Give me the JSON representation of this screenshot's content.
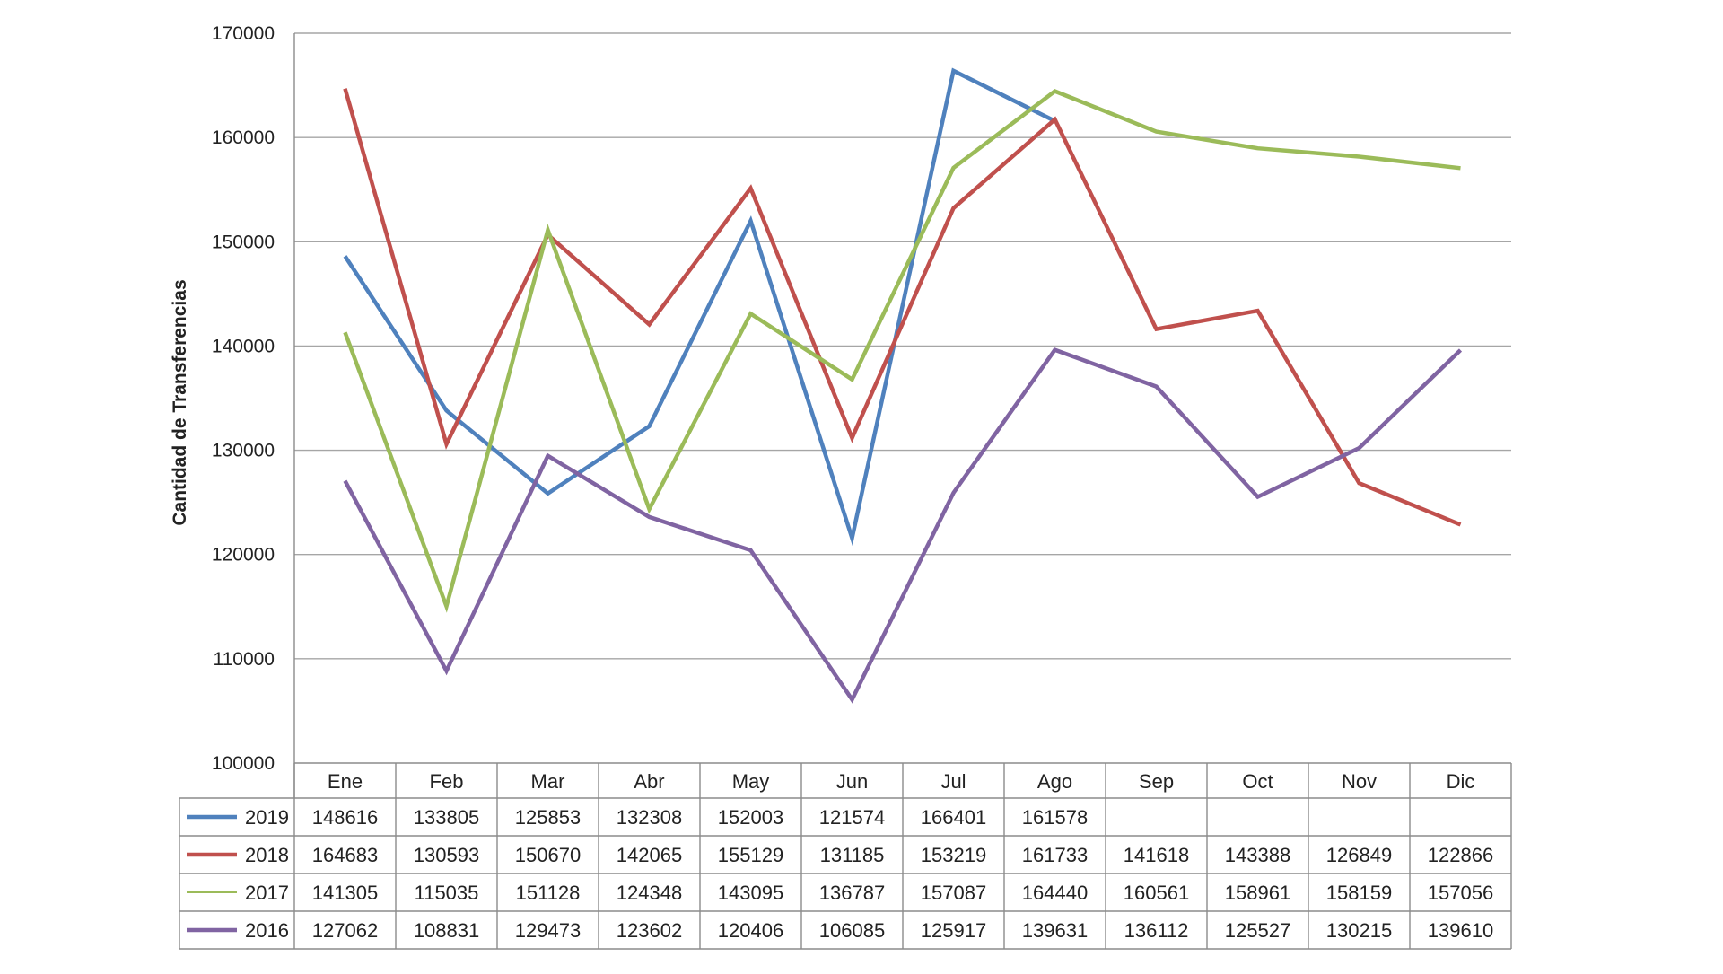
{
  "chart_data": {
    "type": "line",
    "title": "",
    "xlabel": "",
    "ylabel": "Cantidad de Transferencias",
    "ylim": [
      100000,
      170000
    ],
    "yticks": [
      100000,
      110000,
      120000,
      130000,
      140000,
      150000,
      160000,
      170000
    ],
    "grid": true,
    "legend": "data-table-left",
    "categories": [
      "Ene",
      "Feb",
      "Mar",
      "Abr",
      "May",
      "Jun",
      "Jul",
      "Ago",
      "Sep",
      "Oct",
      "Nov",
      "Dic"
    ],
    "series": [
      {
        "name": "2019",
        "color": "#4f81bd",
        "values": [
          148616,
          133805,
          125853,
          132308,
          152003,
          121574,
          166401,
          161578,
          null,
          null,
          null,
          null
        ]
      },
      {
        "name": "2018",
        "color": "#c0504d",
        "values": [
          164683,
          130593,
          150670,
          142065,
          155129,
          131185,
          153219,
          161733,
          141618,
          143388,
          126849,
          122866
        ]
      },
      {
        "name": "2017",
        "color": "#9bbb59",
        "values": [
          141305,
          115035,
          151128,
          124348,
          143095,
          136787,
          157087,
          164440,
          160561,
          158961,
          158159,
          157056
        ]
      },
      {
        "name": "2016",
        "color": "#8064a2",
        "values": [
          127062,
          108831,
          129473,
          123602,
          120406,
          106085,
          125917,
          139631,
          136112,
          125527,
          130215,
          139610
        ]
      }
    ]
  }
}
